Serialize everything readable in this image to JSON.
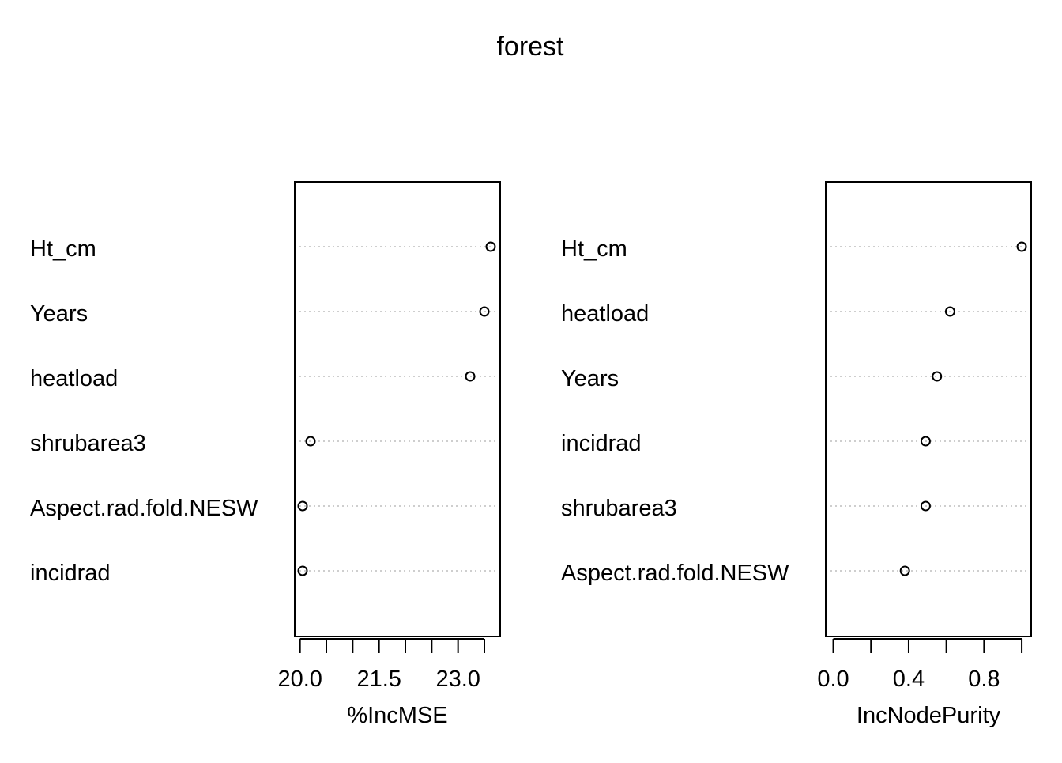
{
  "title": "forest",
  "chart_data": [
    {
      "type": "scatter",
      "style": "dotchart",
      "xlabel": "%IncMSE",
      "xlim": [
        19.9,
        23.8
      ],
      "xticks": [
        20.0,
        20.5,
        21.0,
        21.5,
        22.0,
        22.5,
        23.0,
        23.5
      ],
      "xtick_labels": [
        "20.0",
        "21.5",
        "23.0"
      ],
      "xtick_label_values": [
        20.0,
        21.5,
        23.0
      ],
      "grid": "dotted horizontal",
      "categories": [
        "Ht_cm",
        "Years",
        "heatload",
        "shrubarea3",
        "Aspect.rad.fold.NESW",
        "incidrad"
      ],
      "values": [
        23.62,
        23.5,
        23.23,
        20.2,
        20.05,
        20.05
      ]
    },
    {
      "type": "scatter",
      "style": "dotchart",
      "xlabel": "IncNodePurity",
      "xlim": [
        -0.04,
        1.05
      ],
      "xticks": [
        0.0,
        0.2,
        0.4,
        0.6,
        0.8,
        1.0
      ],
      "xtick_labels": [
        "0.0",
        "0.4",
        "0.8"
      ],
      "xtick_label_values": [
        0.0,
        0.4,
        0.8
      ],
      "grid": "dotted horizontal",
      "categories": [
        "Ht_cm",
        "heatload",
        "Years",
        "incidrad",
        "shrubarea3",
        "Aspect.rad.fold.NESW"
      ],
      "values": [
        1.0,
        0.62,
        0.55,
        0.49,
        0.49,
        0.38
      ]
    }
  ]
}
